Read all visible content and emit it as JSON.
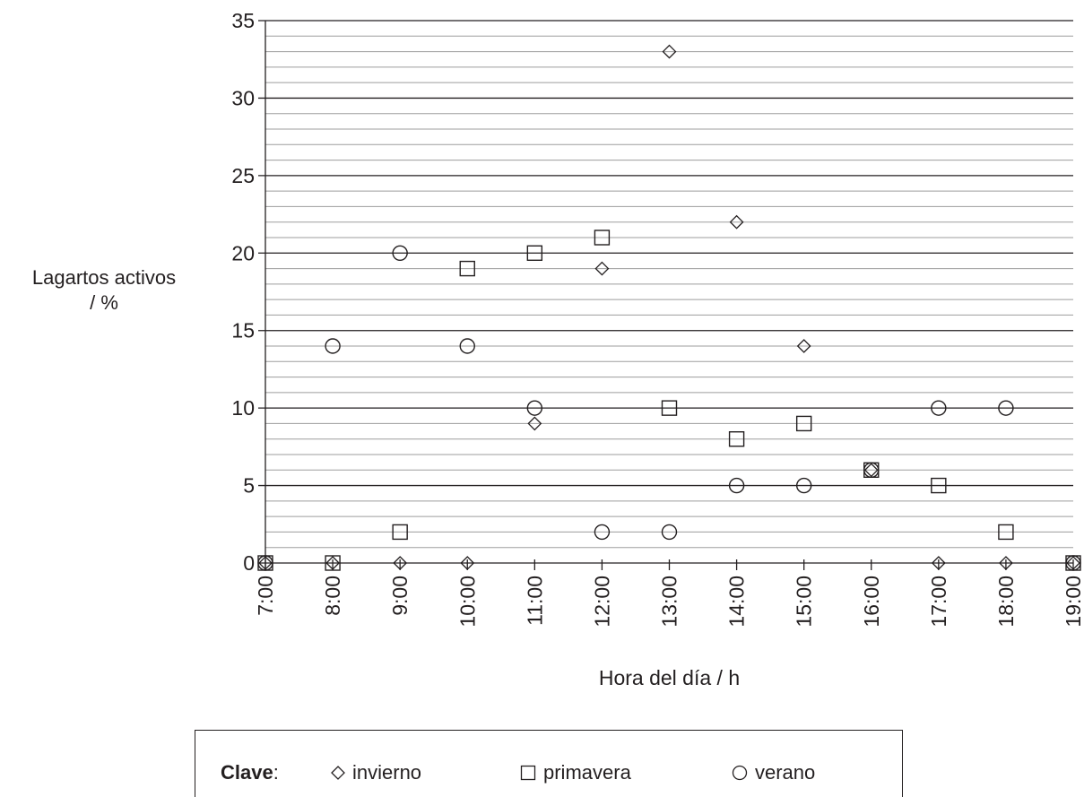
{
  "chart_data": {
    "type": "scatter",
    "title": "",
    "xlabel": "Hora del día / h",
    "ylabel_lines": [
      "Lagartos activos",
      "/ %"
    ],
    "x_categories": [
      "7:00",
      "8:00",
      "9:00",
      "10:00",
      "11:00",
      "12:00",
      "13:00",
      "14:00",
      "15:00",
      "16:00",
      "17:00",
      "18:00",
      "19:00"
    ],
    "ylim": [
      0,
      35
    ],
    "y_major_ticks": [
      0,
      5,
      10,
      15,
      20,
      25,
      30,
      35
    ],
    "y_minor_step": 1,
    "grid": true,
    "series": [
      {
        "name": "invierno",
        "marker": "diamond",
        "values": [
          0,
          0,
          0,
          0,
          9,
          19,
          33,
          22,
          14,
          6,
          0,
          0,
          0
        ]
      },
      {
        "name": "primavera",
        "marker": "square",
        "values": [
          0,
          0,
          2,
          19,
          20,
          21,
          10,
          8,
          9,
          6,
          5,
          2,
          0
        ]
      },
      {
        "name": "verano",
        "marker": "circle",
        "values": [
          0,
          14,
          20,
          14,
          10,
          2,
          2,
          5,
          5,
          6,
          10,
          10,
          0
        ]
      }
    ],
    "legend": {
      "title": "Clave",
      "separator": ":",
      "position": "bottom"
    }
  }
}
